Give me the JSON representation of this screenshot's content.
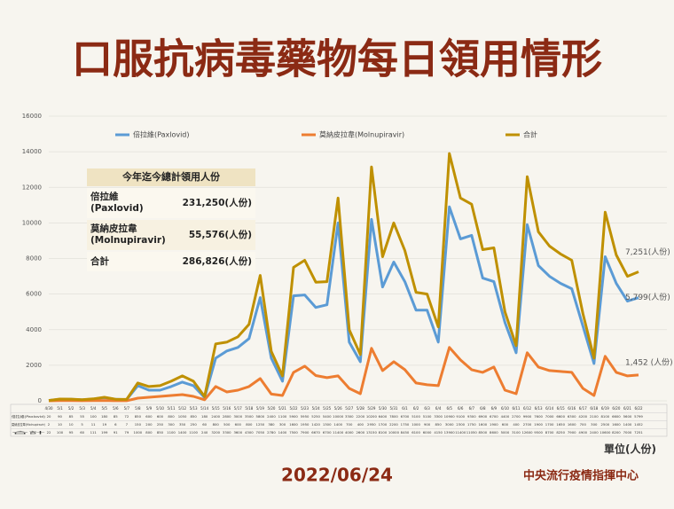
{
  "chart_data": {
    "type": "line",
    "title": "口服抗病毒藥物每日領用情形",
    "categories": [
      "4/30",
      "5/1",
      "5/2",
      "5/3",
      "5/4",
      "5/5",
      "5/6",
      "5/7",
      "5/8",
      "5/9",
      "5/10",
      "5/11",
      "5/12",
      "5/13",
      "5/14",
      "5/15",
      "5/16",
      "5/17",
      "5/18",
      "5/19",
      "5/20",
      "5/21",
      "5/22",
      "5/23",
      "5/24",
      "5/25",
      "5/26",
      "5/27",
      "5/28",
      "5/29",
      "5/30",
      "5/31",
      "6/1",
      "6/2",
      "6/3",
      "6/4",
      "6/5",
      "6/6",
      "6/7",
      "6/8",
      "6/9",
      "6/10",
      "6/11",
      "6/12",
      "6/13",
      "6/14",
      "6/15",
      "6/16",
      "6/17",
      "6/18",
      "6/19",
      "6/20",
      "6/21",
      "6/22"
    ],
    "series": [
      {
        "name": "倍拉維(Paxlovid)",
        "color": "#5b9bd5",
        "values": [
          20,
          90,
          85,
          55,
          100,
          180,
          85,
          72,
          850,
          600,
          600,
          800,
          1050,
          850,
          180,
          2400,
          2800,
          3000,
          3500,
          5800,
          2400,
          1100,
          5900,
          5950,
          5250,
          5400,
          10000,
          3300,
          2200,
          10200,
          6400,
          7800,
          6700,
          5100,
          5100,
          3300,
          10900,
          9100,
          9300,
          6900,
          6700,
          4400,
          2700,
          9900,
          7600,
          7000,
          6600,
          6300,
          4200,
          2100,
          8100,
          6600,
          5600,
          5799
        ]
      },
      {
        "name": "莫納皮拉韋(Molnupiravir)",
        "color": "#ed7d31",
        "values": [
          2,
          10,
          10,
          5,
          11,
          19,
          6,
          7,
          150,
          200,
          250,
          300,
          350,
          250,
          60,
          800,
          500,
          600,
          800,
          1250,
          380,
          300,
          1600,
          1950,
          1420,
          1300,
          1400,
          700,
          400,
          2950,
          1700,
          2200,
          1750,
          1000,
          900,
          850,
          3000,
          2300,
          1750,
          1600,
          1900,
          600,
          400,
          2700,
          1900,
          1700,
          1650,
          1600,
          700,
          300,
          2500,
          1600,
          1400,
          1452
        ]
      },
      {
        "name": "合計",
        "color": "#bf9000",
        "values": [
          22,
          100,
          95,
          60,
          111,
          199,
          91,
          79,
          1000,
          800,
          850,
          1100,
          1400,
          1100,
          240,
          3200,
          3300,
          3600,
          4300,
          7050,
          2780,
          1400,
          7500,
          7900,
          6670,
          6700,
          11400,
          4000,
          2600,
          13150,
          8100,
          10000,
          8450,
          6100,
          6000,
          4150,
          13900,
          11400,
          11050,
          8500,
          8600,
          5000,
          3100,
          12600,
          9500,
          8700,
          8250,
          7900,
          4900,
          2400,
          10600,
          8200,
          7000,
          7251
        ]
      }
    ],
    "end_labels": [
      "5,799(人份)",
      "1,452 (人份)",
      "7,251(人份)"
    ],
    "ylim": [
      0,
      16000
    ],
    "yticks": [
      0,
      2000,
      4000,
      6000,
      8000,
      10000,
      12000,
      14000,
      16000
    ],
    "grid": true,
    "unit": "單位(人份)",
    "summary": {
      "title": "今年迄今總計領用人份",
      "rows": [
        {
          "label": "倍拉維 (Paxlovid)",
          "value": "231,250(人份)"
        },
        {
          "label": "莫納皮拉韋 (Molnupiravir)",
          "value": "55,576(人份)"
        },
        {
          "label": "合計",
          "value": "286,826(人份)"
        }
      ]
    },
    "date": "2022/06/24",
    "source": "中央流行疫情指揮中心"
  }
}
